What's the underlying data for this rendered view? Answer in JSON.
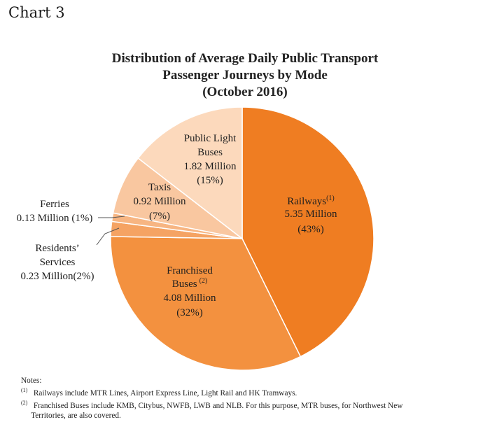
{
  "header": {
    "chart_label": "Chart 3"
  },
  "chart_data": {
    "type": "pie",
    "title": [
      "Distribution of Average Daily Public Transport",
      "Passenger Journeys by Mode",
      "(October 2016)"
    ],
    "slices": [
      {
        "name": "Railways",
        "note_ref": "(1)",
        "value": 5.35,
        "value_label": "5.35 Million",
        "percent_label": "(43%)",
        "color": "#ef7d22"
      },
      {
        "name": "Franchised Buses",
        "note_ref": "(2)",
        "value": 4.08,
        "value_label": "4.08 Million",
        "percent_label": "(32%)",
        "color": "#f3913f"
      },
      {
        "name": "Residents' Services",
        "note_ref": "",
        "value": 0.23,
        "value_label": "0.23 Million(2%)",
        "percent_label": "",
        "color": "#f5a363"
      },
      {
        "name": "Ferries",
        "note_ref": "",
        "value": 0.13,
        "value_label": "0.13 Million (1%)",
        "percent_label": "",
        "color": "#f7b582"
      },
      {
        "name": "Taxis",
        "note_ref": "",
        "value": 0.92,
        "value_label": "0.92 Million",
        "percent_label": "(7%)",
        "color": "#f9c7a0"
      },
      {
        "name": "Public Light Buses",
        "note_ref": "",
        "value": 1.82,
        "value_label": "1.82 Million",
        "percent_label": "(15%)",
        "color": "#fcd9bc"
      }
    ]
  },
  "labels": {
    "railways_name": "Railways",
    "railways_ref": "(1)",
    "railways_value": "5.35 Million",
    "railways_pct": "(43%)",
    "franchised_line1": "Franchised",
    "franchised_line2": "Buses",
    "franchised_ref": "(2)",
    "franchised_value": "4.08 Million",
    "franchised_pct": "(32%)",
    "plb_line1": "Public Light",
    "plb_line2": "Buses",
    "plb_value": "1.82 Million",
    "plb_pct": "(15%)",
    "taxis_name": "Taxis",
    "taxis_value": "0.92 Million",
    "taxis_pct": "(7%)",
    "ferries_name": "Ferries",
    "ferries_value": "0.13 Million (1%)",
    "residents_line1": "Residents’",
    "residents_line2": "Services",
    "residents_value": "0.23 Million(2%)"
  },
  "notes": {
    "heading": "Notes:",
    "items": [
      {
        "ref": "(1)",
        "text": "Railways include MTR Lines, Airport Express Line, Light Rail and HK Tramways."
      },
      {
        "ref": "(2)",
        "text": "Franchised Buses include KMB, Citybus, NWFB, LWB and NLB.  For this purpose, MTR buses, for Northwest New"
      },
      {
        "ref": "",
        "text": "Territories, are also covered."
      }
    ]
  }
}
